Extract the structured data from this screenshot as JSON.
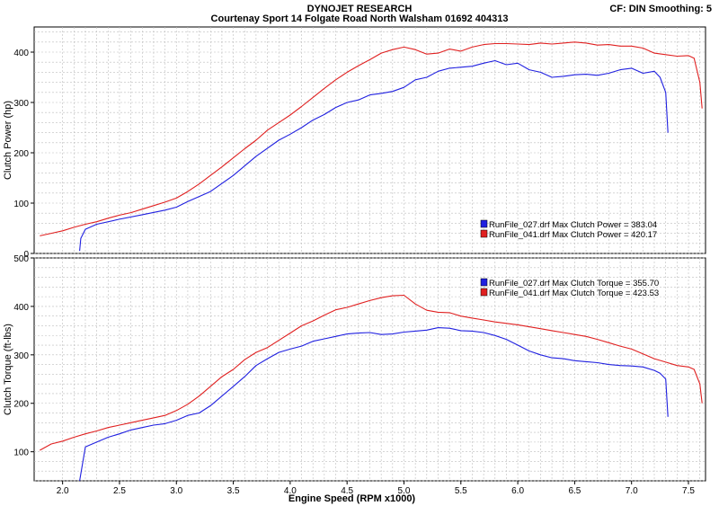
{
  "header": {
    "company": "DYNOJET RESEARCH",
    "address": "Courtenay Sport 14 Folgate Road North Walsham 01692 404313",
    "cf_label": "CF: DIN  Smoothing: 5"
  },
  "xaxis": {
    "label": "Engine Speed (RPM x1000)",
    "ticks": [
      "2.0",
      "2.5",
      "3.0",
      "3.5",
      "4.0",
      "4.5",
      "5.0",
      "5.5",
      "6.0",
      "6.5",
      "7.0",
      "7.5"
    ]
  },
  "colors": {
    "run027": "#2020e0",
    "run041": "#e02020",
    "grid": "#bdbdbd"
  },
  "chart_data": [
    {
      "type": "line",
      "ylabel": "Clutch Power (hp)",
      "yticks": [
        "0",
        "100",
        "200",
        "300",
        "400"
      ],
      "xlim": [
        1.75,
        7.65
      ],
      "ylim": [
        0,
        450
      ],
      "grid": true,
      "legend_position": "lower-right",
      "series": [
        {
          "name": "RunFile_027.drf",
          "legend": "RunFile_027.drf Max Clutch Power = 383.04",
          "x": [
            2.15,
            2.16,
            2.2,
            2.3,
            2.5,
            2.7,
            2.9,
            3.0,
            3.1,
            3.3,
            3.5,
            3.7,
            3.9,
            4.0,
            4.1,
            4.2,
            4.3,
            4.4,
            4.5,
            4.6,
            4.7,
            4.8,
            4.9,
            5.0,
            5.1,
            5.2,
            5.3,
            5.4,
            5.5,
            5.6,
            5.7,
            5.8,
            5.9,
            6.0,
            6.1,
            6.2,
            6.3,
            6.4,
            6.5,
            6.6,
            6.7,
            6.8,
            6.9,
            7.0,
            7.1,
            7.2,
            7.25,
            7.3,
            7.32
          ],
          "y": [
            5,
            30,
            48,
            58,
            68,
            77,
            86,
            92,
            103,
            123,
            155,
            193,
            225,
            237,
            250,
            265,
            276,
            290,
            300,
            305,
            315,
            318,
            322,
            330,
            345,
            350,
            362,
            368,
            370,
            372,
            378,
            383,
            375,
            378,
            365,
            360,
            350,
            352,
            355,
            356,
            354,
            358,
            365,
            368,
            358,
            362,
            350,
            320,
            240
          ]
        },
        {
          "name": "RunFile_041.drf",
          "legend": "RunFile_041.drf Max Clutch Power = 420.17",
          "x": [
            1.8,
            1.9,
            2.0,
            2.1,
            2.2,
            2.3,
            2.4,
            2.5,
            2.6,
            2.7,
            2.8,
            2.9,
            3.0,
            3.1,
            3.2,
            3.3,
            3.4,
            3.5,
            3.6,
            3.7,
            3.8,
            3.9,
            4.0,
            4.1,
            4.2,
            4.3,
            4.4,
            4.5,
            4.6,
            4.7,
            4.8,
            4.9,
            5.0,
            5.1,
            5.2,
            5.3,
            5.4,
            5.5,
            5.6,
            5.7,
            5.8,
            5.9,
            6.0,
            6.1,
            6.2,
            6.3,
            6.4,
            6.5,
            6.6,
            6.7,
            6.8,
            6.9,
            7.0,
            7.1,
            7.2,
            7.3,
            7.4,
            7.5,
            7.55,
            7.6,
            7.62
          ],
          "y": [
            35,
            40,
            45,
            52,
            58,
            63,
            70,
            76,
            81,
            88,
            95,
            102,
            110,
            123,
            138,
            155,
            172,
            190,
            208,
            225,
            245,
            260,
            275,
            292,
            310,
            328,
            345,
            360,
            373,
            385,
            398,
            405,
            410,
            405,
            396,
            398,
            406,
            402,
            410,
            415,
            417,
            417,
            416,
            415,
            418,
            416,
            418,
            420,
            418,
            414,
            415,
            412,
            412,
            408,
            398,
            395,
            392,
            393,
            388,
            340,
            288
          ]
        }
      ]
    },
    {
      "type": "line",
      "ylabel": "Clutch Torque (ft-lbs)",
      "yticks": [
        "100",
        "200",
        "300",
        "400",
        "500"
      ],
      "xlim": [
        1.75,
        7.65
      ],
      "ylim": [
        40,
        500
      ],
      "grid": true,
      "legend_position": "upper-right",
      "series": [
        {
          "name": "RunFile_027.drf",
          "legend": "RunFile_027.drf Max Clutch Torque = 355.70",
          "x": [
            2.15,
            2.2,
            2.3,
            2.4,
            2.5,
            2.6,
            2.7,
            2.8,
            2.9,
            3.0,
            3.1,
            3.2,
            3.3,
            3.4,
            3.5,
            3.6,
            3.7,
            3.8,
            3.9,
            4.0,
            4.1,
            4.2,
            4.3,
            4.4,
            4.5,
            4.6,
            4.7,
            4.8,
            4.9,
            5.0,
            5.1,
            5.2,
            5.3,
            5.4,
            5.5,
            5.6,
            5.7,
            5.8,
            5.9,
            6.0,
            6.1,
            6.2,
            6.3,
            6.4,
            6.5,
            6.6,
            6.7,
            6.8,
            6.9,
            7.0,
            7.1,
            7.2,
            7.25,
            7.3,
            7.32
          ],
          "y": [
            40,
            110,
            120,
            130,
            137,
            145,
            150,
            155,
            158,
            165,
            175,
            180,
            195,
            215,
            235,
            255,
            278,
            292,
            305,
            312,
            318,
            328,
            333,
            338,
            343,
            345,
            346,
            342,
            343,
            347,
            349,
            351,
            356,
            355,
            350,
            349,
            346,
            340,
            332,
            320,
            308,
            300,
            294,
            292,
            288,
            286,
            284,
            280,
            278,
            277,
            275,
            268,
            262,
            250,
            172
          ]
        },
        {
          "name": "RunFile_041.drf",
          "legend": "RunFile_041.drf Max Clutch Torque = 423.53",
          "x": [
            1.8,
            1.9,
            2.0,
            2.1,
            2.2,
            2.3,
            2.4,
            2.5,
            2.6,
            2.7,
            2.8,
            2.9,
            3.0,
            3.1,
            3.2,
            3.3,
            3.4,
            3.5,
            3.6,
            3.7,
            3.8,
            3.9,
            4.0,
            4.1,
            4.2,
            4.3,
            4.4,
            4.5,
            4.6,
            4.7,
            4.8,
            4.9,
            5.0,
            5.1,
            5.2,
            5.3,
            5.4,
            5.5,
            5.6,
            5.7,
            5.8,
            5.9,
            6.0,
            6.1,
            6.2,
            6.3,
            6.4,
            6.5,
            6.6,
            6.7,
            6.8,
            6.9,
            7.0,
            7.1,
            7.2,
            7.3,
            7.4,
            7.5,
            7.55,
            7.6,
            7.62
          ],
          "y": [
            103,
            116,
            122,
            130,
            137,
            143,
            150,
            155,
            160,
            165,
            170,
            175,
            185,
            198,
            215,
            235,
            255,
            270,
            290,
            305,
            315,
            330,
            345,
            360,
            370,
            382,
            393,
            398,
            405,
            412,
            418,
            422,
            423,
            405,
            392,
            388,
            387,
            380,
            376,
            372,
            368,
            365,
            362,
            358,
            354,
            350,
            346,
            342,
            338,
            332,
            325,
            318,
            312,
            302,
            292,
            285,
            278,
            275,
            270,
            240,
            200
          ]
        }
      ]
    }
  ]
}
